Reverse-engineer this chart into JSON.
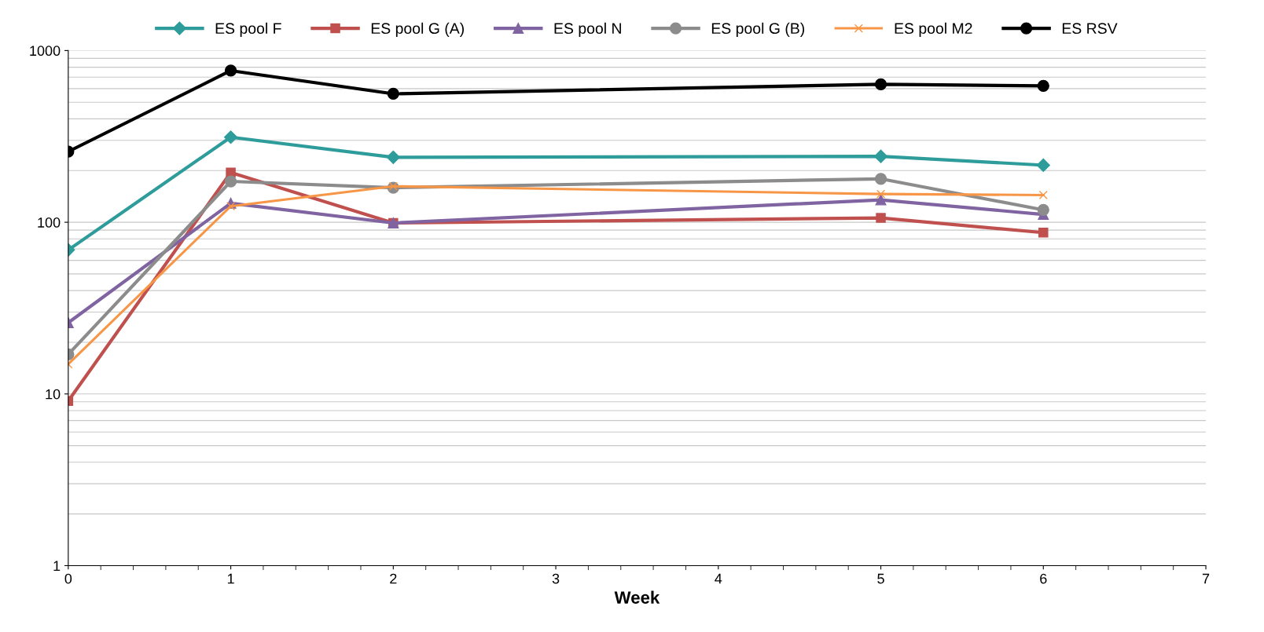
{
  "chart_data": {
    "type": "line",
    "xlabel": "Week",
    "log": "y",
    "grid": "y",
    "legend": "top",
    "x": [
      0,
      1,
      2,
      5,
      6
    ],
    "xlim": [
      0,
      7
    ],
    "xticks": [
      0,
      1,
      2,
      3,
      4,
      5,
      6,
      7
    ],
    "ylim": [
      1,
      1000
    ],
    "yticks": [
      1,
      10,
      100,
      1000
    ],
    "series": [
      {
        "name": "ES pool F",
        "color": "#2e9c9a",
        "marker": "diamond",
        "values": [
          69,
          313,
          239,
          242,
          215
        ]
      },
      {
        "name": "ES pool G (A)",
        "color": "#c0504d",
        "marker": "square",
        "values": [
          9.1,
          195,
          99,
          106,
          87
        ]
      },
      {
        "name": "ES pool N",
        "color": "#8064a2",
        "marker": "triangle",
        "values": [
          26,
          129,
          99,
          135,
          111
        ]
      },
      {
        "name": "ES pool G (B)",
        "color": "#8c8c8c",
        "marker": "circle",
        "values": [
          17,
          173,
          159,
          179,
          118
        ]
      },
      {
        "name": "ES pool M2",
        "color": "#f79646",
        "marker": "cross",
        "values": [
          14.9,
          124,
          162,
          146,
          144
        ]
      },
      {
        "name": "ES RSV",
        "color": "#000000",
        "marker": "circle",
        "values": [
          258,
          764,
          560,
          636,
          623
        ]
      }
    ]
  }
}
